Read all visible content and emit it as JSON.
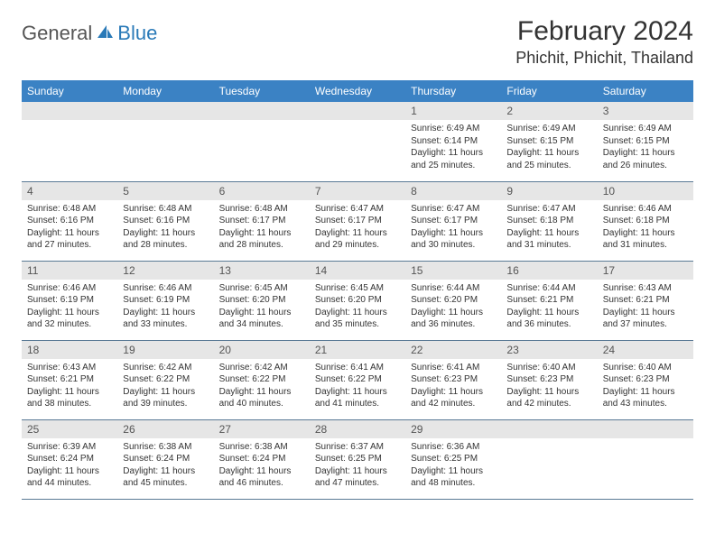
{
  "brand": {
    "part1": "General",
    "part2": "Blue"
  },
  "title": "February 2024",
  "location": "Phichit, Phichit, Thailand",
  "colors": {
    "header_bg": "#3b82c4",
    "header_text": "#ffffff",
    "daynum_bg": "#e6e6e6",
    "brand_accent": "#2a7ab8",
    "row_divider": "#5a7a95"
  },
  "table": {
    "columns": [
      "Sunday",
      "Monday",
      "Tuesday",
      "Wednesday",
      "Thursday",
      "Friday",
      "Saturday"
    ],
    "weeks": [
      [
        null,
        null,
        null,
        null,
        {
          "n": "1",
          "sr": "6:49 AM",
          "ss": "6:14 PM",
          "dl": "11 hours and 25 minutes."
        },
        {
          "n": "2",
          "sr": "6:49 AM",
          "ss": "6:15 PM",
          "dl": "11 hours and 25 minutes."
        },
        {
          "n": "3",
          "sr": "6:49 AM",
          "ss": "6:15 PM",
          "dl": "11 hours and 26 minutes."
        }
      ],
      [
        {
          "n": "4",
          "sr": "6:48 AM",
          "ss": "6:16 PM",
          "dl": "11 hours and 27 minutes."
        },
        {
          "n": "5",
          "sr": "6:48 AM",
          "ss": "6:16 PM",
          "dl": "11 hours and 28 minutes."
        },
        {
          "n": "6",
          "sr": "6:48 AM",
          "ss": "6:17 PM",
          "dl": "11 hours and 28 minutes."
        },
        {
          "n": "7",
          "sr": "6:47 AM",
          "ss": "6:17 PM",
          "dl": "11 hours and 29 minutes."
        },
        {
          "n": "8",
          "sr": "6:47 AM",
          "ss": "6:17 PM",
          "dl": "11 hours and 30 minutes."
        },
        {
          "n": "9",
          "sr": "6:47 AM",
          "ss": "6:18 PM",
          "dl": "11 hours and 31 minutes."
        },
        {
          "n": "10",
          "sr": "6:46 AM",
          "ss": "6:18 PM",
          "dl": "11 hours and 31 minutes."
        }
      ],
      [
        {
          "n": "11",
          "sr": "6:46 AM",
          "ss": "6:19 PM",
          "dl": "11 hours and 32 minutes."
        },
        {
          "n": "12",
          "sr": "6:46 AM",
          "ss": "6:19 PM",
          "dl": "11 hours and 33 minutes."
        },
        {
          "n": "13",
          "sr": "6:45 AM",
          "ss": "6:20 PM",
          "dl": "11 hours and 34 minutes."
        },
        {
          "n": "14",
          "sr": "6:45 AM",
          "ss": "6:20 PM",
          "dl": "11 hours and 35 minutes."
        },
        {
          "n": "15",
          "sr": "6:44 AM",
          "ss": "6:20 PM",
          "dl": "11 hours and 36 minutes."
        },
        {
          "n": "16",
          "sr": "6:44 AM",
          "ss": "6:21 PM",
          "dl": "11 hours and 36 minutes."
        },
        {
          "n": "17",
          "sr": "6:43 AM",
          "ss": "6:21 PM",
          "dl": "11 hours and 37 minutes."
        }
      ],
      [
        {
          "n": "18",
          "sr": "6:43 AM",
          "ss": "6:21 PM",
          "dl": "11 hours and 38 minutes."
        },
        {
          "n": "19",
          "sr": "6:42 AM",
          "ss": "6:22 PM",
          "dl": "11 hours and 39 minutes."
        },
        {
          "n": "20",
          "sr": "6:42 AM",
          "ss": "6:22 PM",
          "dl": "11 hours and 40 minutes."
        },
        {
          "n": "21",
          "sr": "6:41 AM",
          "ss": "6:22 PM",
          "dl": "11 hours and 41 minutes."
        },
        {
          "n": "22",
          "sr": "6:41 AM",
          "ss": "6:23 PM",
          "dl": "11 hours and 42 minutes."
        },
        {
          "n": "23",
          "sr": "6:40 AM",
          "ss": "6:23 PM",
          "dl": "11 hours and 42 minutes."
        },
        {
          "n": "24",
          "sr": "6:40 AM",
          "ss": "6:23 PM",
          "dl": "11 hours and 43 minutes."
        }
      ],
      [
        {
          "n": "25",
          "sr": "6:39 AM",
          "ss": "6:24 PM",
          "dl": "11 hours and 44 minutes."
        },
        {
          "n": "26",
          "sr": "6:38 AM",
          "ss": "6:24 PM",
          "dl": "11 hours and 45 minutes."
        },
        {
          "n": "27",
          "sr": "6:38 AM",
          "ss": "6:24 PM",
          "dl": "11 hours and 46 minutes."
        },
        {
          "n": "28",
          "sr": "6:37 AM",
          "ss": "6:25 PM",
          "dl": "11 hours and 47 minutes."
        },
        {
          "n": "29",
          "sr": "6:36 AM",
          "ss": "6:25 PM",
          "dl": "11 hours and 48 minutes."
        },
        null,
        null
      ]
    ]
  },
  "labels": {
    "sunrise": "Sunrise:",
    "sunset": "Sunset:",
    "daylight": "Daylight:"
  }
}
